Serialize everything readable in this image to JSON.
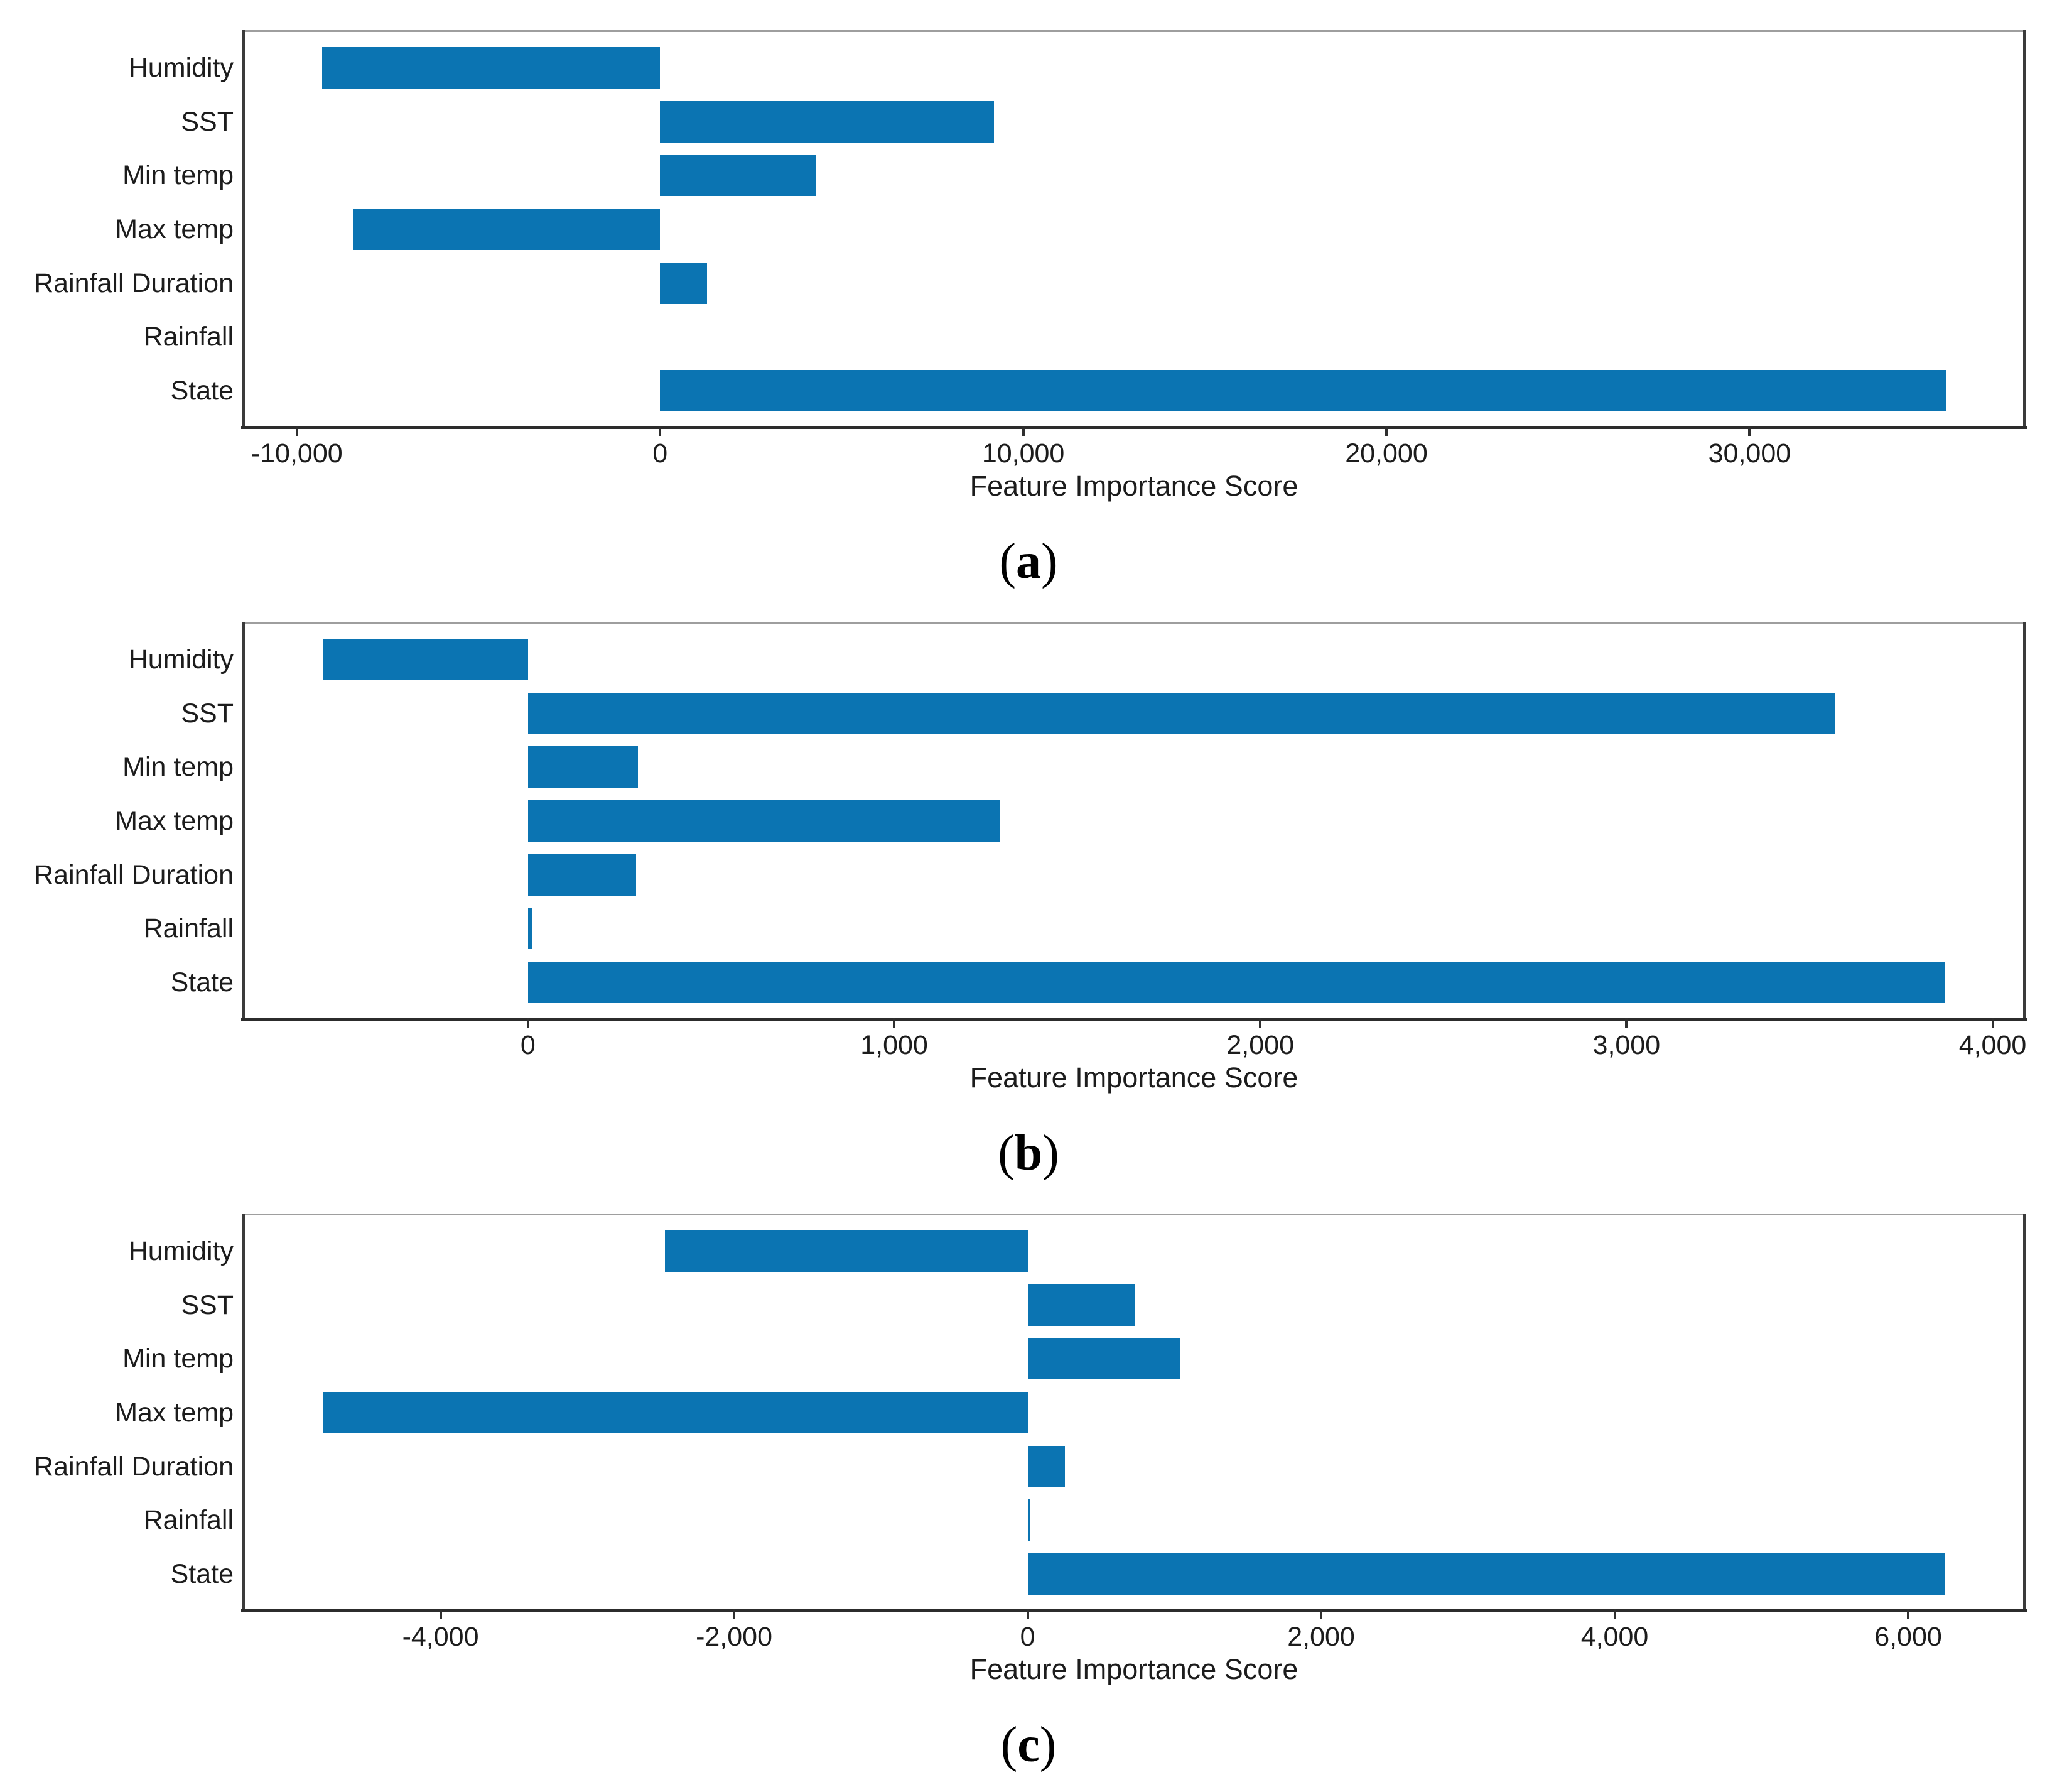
{
  "colors": {
    "bar": "#0b74b2",
    "axis_line": "#2c2c2c",
    "spine_gray": "#9e9e9e",
    "text": "#1c1c1c"
  },
  "chart_data": [
    {
      "type": "bar",
      "orientation": "horizontal",
      "id": "a",
      "caption": {
        "prefix": "(",
        "letter": "a",
        "suffix": ")"
      },
      "xlabel": "Feature Importance Score",
      "ylabel": "",
      "grid": false,
      "legend": null,
      "categories": [
        "Humidity",
        "SST",
        "Min temp",
        "Max temp",
        "Rainfall Duration",
        "Rainfall",
        "State"
      ],
      "values": [
        -9300,
        9200,
        4300,
        -8450,
        1300,
        0,
        35400
      ],
      "xlim": [
        -11500,
        37600
      ],
      "xticks": [
        {
          "value": -10000,
          "label": "-10,000"
        },
        {
          "value": 0,
          "label": "0"
        },
        {
          "value": 10000,
          "label": "10,000"
        },
        {
          "value": 20000,
          "label": "20,000"
        },
        {
          "value": 30000,
          "label": "30,000"
        }
      ]
    },
    {
      "type": "bar",
      "orientation": "horizontal",
      "id": "b",
      "caption": {
        "prefix": "(",
        "letter": "b",
        "suffix": ")"
      },
      "xlabel": "Feature Importance Score",
      "ylabel": "",
      "grid": false,
      "legend": null,
      "categories": [
        "Humidity",
        "SST",
        "Min temp",
        "Max temp",
        "Rainfall Duration",
        "Rainfall",
        "State"
      ],
      "values": [
        -560,
        3570,
        300,
        1290,
        295,
        10,
        3870
      ],
      "xlim": [
        -780,
        4090
      ],
      "xticks": [
        {
          "value": 0,
          "label": "0"
        },
        {
          "value": 1000,
          "label": "1,000"
        },
        {
          "value": 2000,
          "label": "2,000"
        },
        {
          "value": 3000,
          "label": "3,000"
        },
        {
          "value": 4000,
          "label": "4,000"
        }
      ]
    },
    {
      "type": "bar",
      "orientation": "horizontal",
      "id": "c",
      "caption": {
        "prefix": "(",
        "letter": "c",
        "suffix": ")"
      },
      "xlabel": "Feature Importance Score",
      "ylabel": "",
      "grid": false,
      "legend": null,
      "categories": [
        "Humidity",
        "SST",
        "Min temp",
        "Max temp",
        "Rainfall Duration",
        "Rainfall",
        "State"
      ],
      "values": [
        -2470,
        730,
        1040,
        -4800,
        255,
        20,
        6250
      ],
      "xlim": [
        -5350,
        6800
      ],
      "xticks": [
        {
          "value": -4000,
          "label": "-4,000"
        },
        {
          "value": -2000,
          "label": "-2,000"
        },
        {
          "value": 0,
          "label": "0"
        },
        {
          "value": 2000,
          "label": "2,000"
        },
        {
          "value": 4000,
          "label": "4,000"
        },
        {
          "value": 6000,
          "label": "6,000"
        }
      ]
    }
  ]
}
